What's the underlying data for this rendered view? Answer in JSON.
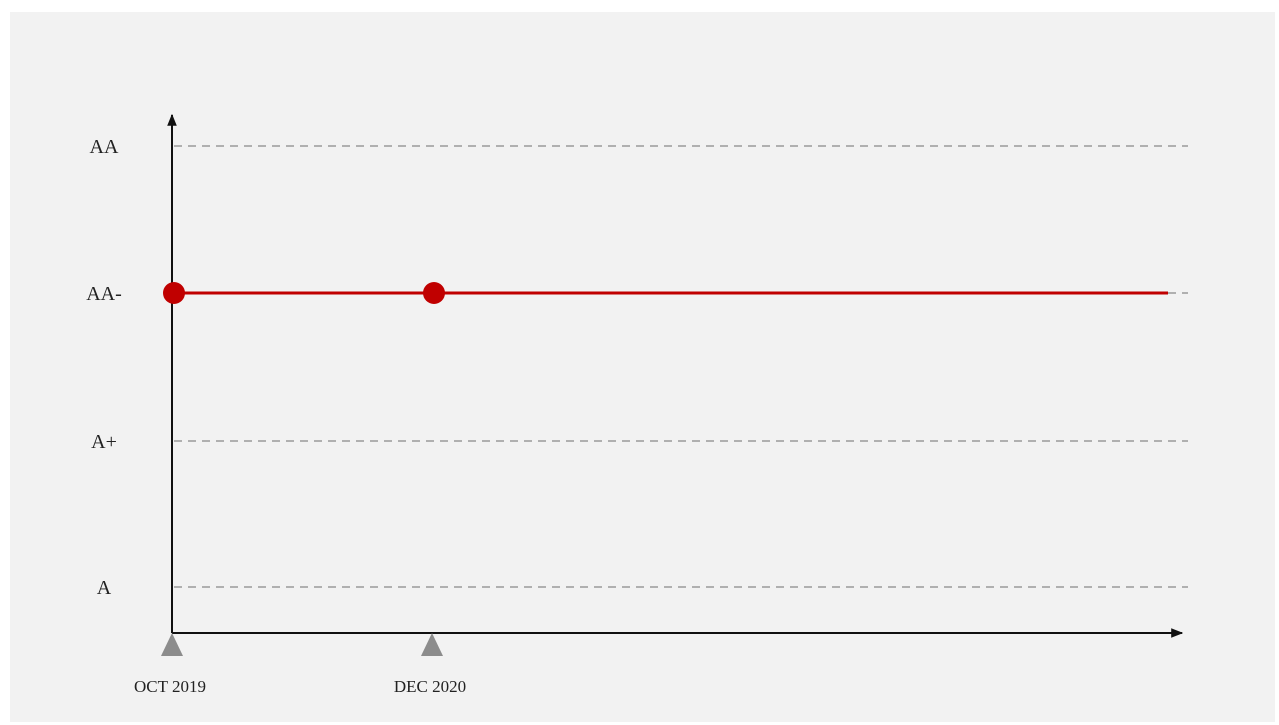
{
  "chart_data": {
    "type": "line",
    "title": "",
    "xlabel": "",
    "ylabel": "",
    "y_categories": [
      "A",
      "A+",
      "AA-",
      "AA"
    ],
    "x_markers": [
      "OCT 2019",
      "DEC 2020"
    ],
    "series": [
      {
        "values": [
          {
            "x": "OCT 2019",
            "y": "AA-"
          },
          {
            "x": "DEC 2020",
            "y": "AA-"
          }
        ],
        "extends_to_present": true
      }
    ],
    "grid": "dashed horizontal lines at each category",
    "colors": {
      "background": "#f2f2f2",
      "axis": "#111111",
      "grid": "#999999",
      "series": "#c00000",
      "marker_triangle": "#8c8c8c"
    }
  }
}
